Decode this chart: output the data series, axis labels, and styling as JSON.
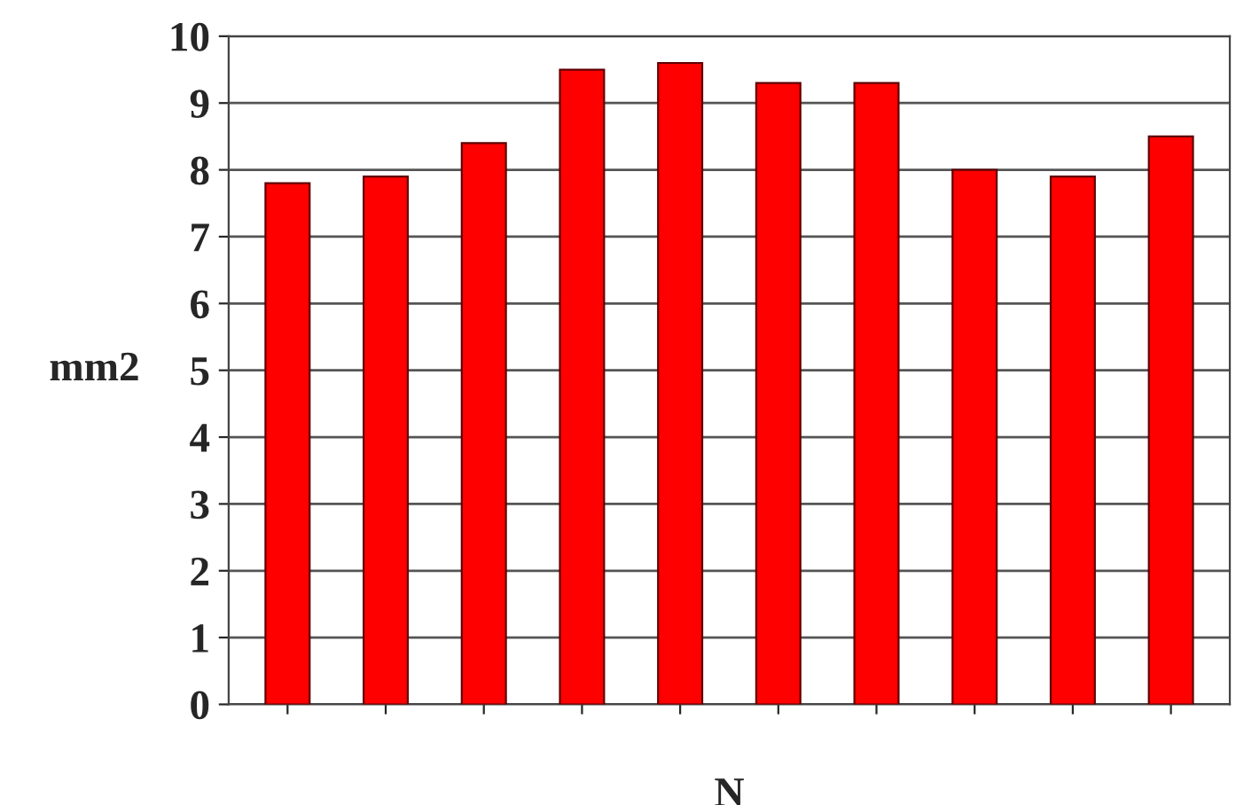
{
  "chart_data": {
    "type": "bar",
    "xlabel": "N",
    "ylabel": "mm2",
    "categories": [
      null,
      null,
      null,
      null,
      null,
      null,
      null,
      null,
      null,
      null
    ],
    "values": [
      7.8,
      7.9,
      8.4,
      9.5,
      9.6,
      9.3,
      9.3,
      8.0,
      7.9,
      8.5
    ],
    "color": "#ff0000",
    "ylim": [
      0,
      10
    ],
    "yticks": [
      0,
      1,
      2,
      3,
      4,
      5,
      6,
      7,
      8,
      9,
      10
    ],
    "grid": "y"
  }
}
